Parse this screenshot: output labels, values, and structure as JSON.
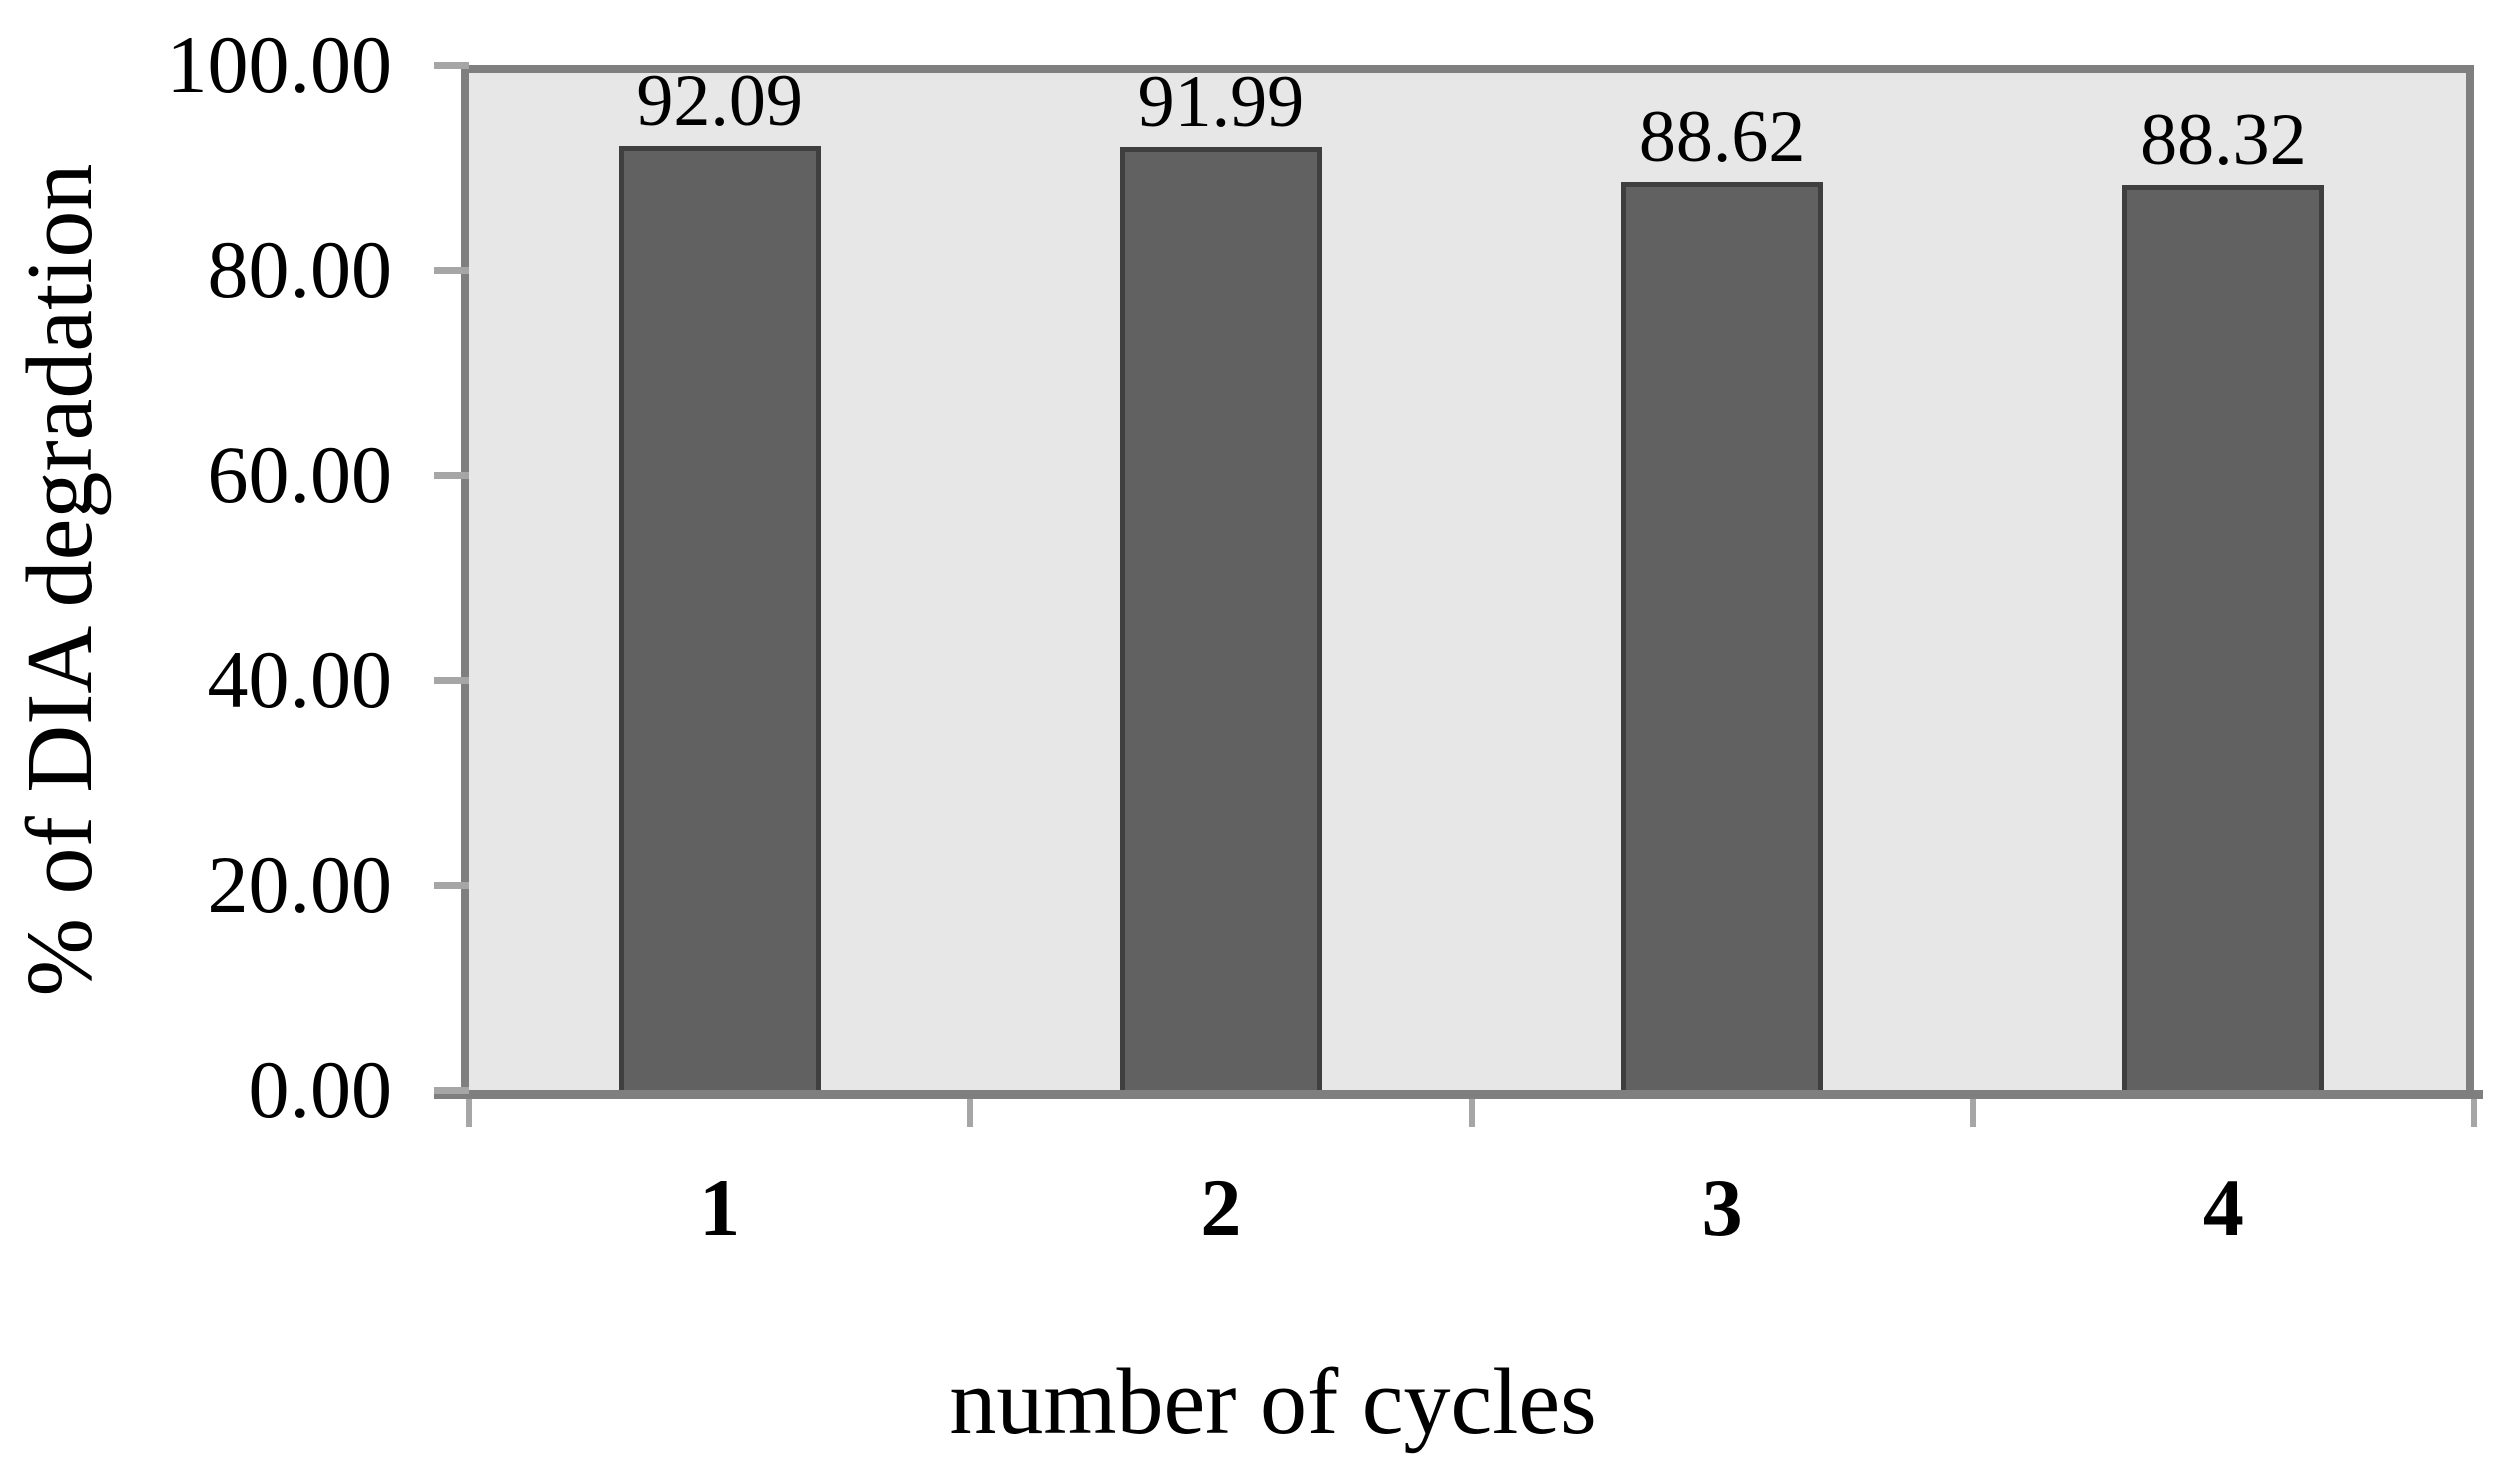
{
  "chart_data": {
    "type": "bar",
    "title": "",
    "categories": [
      "1",
      "2",
      "3",
      "4"
    ],
    "values": [
      92.09,
      91.99,
      88.62,
      88.32
    ],
    "data_labels": [
      "92.09",
      "91.99",
      "88.62",
      "88.32"
    ],
    "xlabel": "number of cycles",
    "ylabel": "% of DIA degradation",
    "ylim": [
      0,
      100
    ],
    "ytick_labels": [
      "100.00",
      "80.00",
      "60.00",
      "40.00",
      "20.00",
      "0.00"
    ],
    "grid": "off",
    "legend": "none",
    "colors": {
      "bar_fill": "#616161",
      "bar_border": "#3F3F3F",
      "plot_bg": "#E7E7E7",
      "plot_border": "#7F7F7F",
      "tick_color": "#A6A6A6",
      "text": "#000000"
    }
  }
}
